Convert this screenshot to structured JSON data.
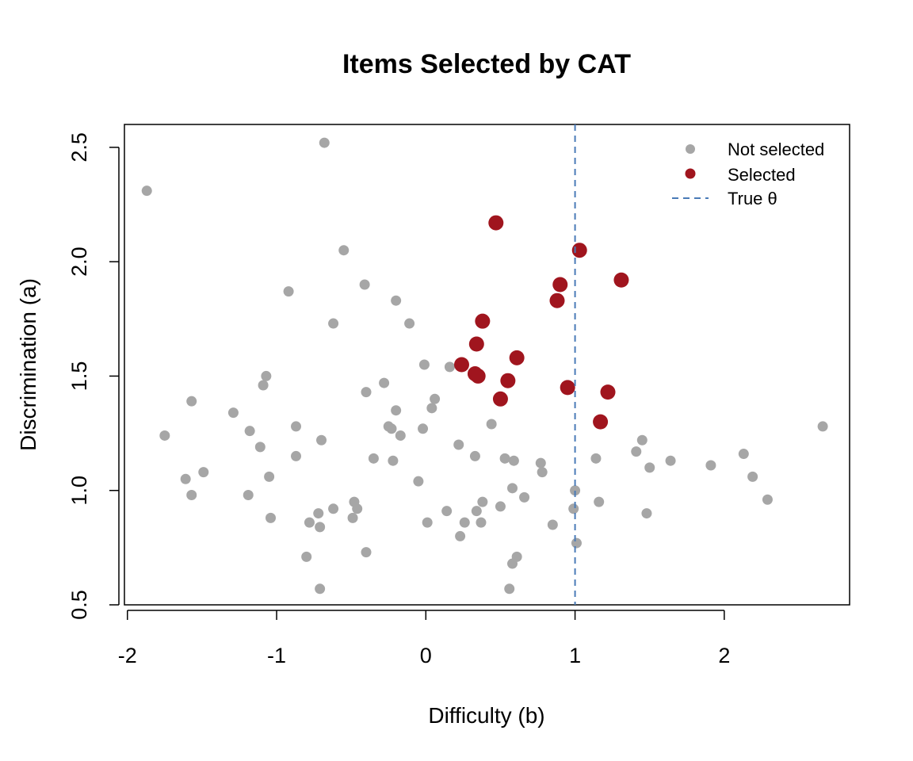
{
  "chart_data": {
    "type": "scatter",
    "title": "Items Selected by CAT",
    "xlabel": "Difficulty (b)",
    "ylabel": "Discrimination (a)",
    "xlim": [
      -2.02,
      2.84
    ],
    "ylim": [
      0.5,
      2.6
    ],
    "xticks": [
      -2,
      -1,
      0,
      1,
      2
    ],
    "yticks": [
      0.5,
      1.0,
      1.5,
      2.0,
      2.5
    ],
    "xtick_labels": [
      "-2",
      "-1",
      "0",
      "1",
      "2"
    ],
    "ytick_labels": [
      "0.5",
      "1.0",
      "1.5",
      "2.0",
      "2.5"
    ],
    "grid": false,
    "legend_position": "top-right",
    "legend": {
      "not_selected": "Not selected",
      "selected": "Selected",
      "true_theta": "True θ"
    },
    "colors": {
      "not_selected": "#a6a6a6",
      "selected": "#a0151e",
      "true_theta": "#4a7bb7"
    },
    "true_theta": 1.0,
    "series": [
      {
        "name": "Not selected",
        "points": [
          [
            -1.87,
            2.31
          ],
          [
            -0.68,
            2.52
          ],
          [
            -0.55,
            2.05
          ],
          [
            -0.92,
            1.87
          ],
          [
            -0.41,
            1.9
          ],
          [
            -0.2,
            1.83
          ],
          [
            -0.62,
            1.73
          ],
          [
            -0.11,
            1.73
          ],
          [
            -0.01,
            1.55
          ],
          [
            0.16,
            1.54
          ],
          [
            -1.07,
            1.5
          ],
          [
            -1.09,
            1.46
          ],
          [
            -0.28,
            1.47
          ],
          [
            -0.4,
            1.43
          ],
          [
            0.06,
            1.4
          ],
          [
            0.04,
            1.36
          ],
          [
            -1.57,
            1.39
          ],
          [
            -1.29,
            1.34
          ],
          [
            -0.2,
            1.35
          ],
          [
            0.44,
            1.29
          ],
          [
            -0.25,
            1.28
          ],
          [
            -0.23,
            1.27
          ],
          [
            -0.02,
            1.27
          ],
          [
            -0.87,
            1.28
          ],
          [
            -1.18,
            1.26
          ],
          [
            -0.17,
            1.24
          ],
          [
            -1.75,
            1.24
          ],
          [
            -0.7,
            1.22
          ],
          [
            0.22,
            1.2
          ],
          [
            -1.11,
            1.19
          ],
          [
            1.45,
            1.22
          ],
          [
            1.41,
            1.17
          ],
          [
            2.66,
            1.28
          ],
          [
            -0.87,
            1.15
          ],
          [
            -0.35,
            1.14
          ],
          [
            -0.22,
            1.13
          ],
          [
            0.33,
            1.15
          ],
          [
            0.53,
            1.14
          ],
          [
            0.59,
            1.13
          ],
          [
            0.77,
            1.12
          ],
          [
            0.78,
            1.08
          ],
          [
            1.14,
            1.14
          ],
          [
            1.5,
            1.1
          ],
          [
            1.64,
            1.13
          ],
          [
            1.91,
            1.11
          ],
          [
            2.13,
            1.16
          ],
          [
            2.19,
            1.06
          ],
          [
            -1.61,
            1.05
          ],
          [
            -1.49,
            1.08
          ],
          [
            -1.05,
            1.06
          ],
          [
            -0.05,
            1.04
          ],
          [
            -1.57,
            0.98
          ],
          [
            -1.19,
            0.98
          ],
          [
            0.58,
            1.01
          ],
          [
            1.0,
            1.0
          ],
          [
            0.66,
            0.97
          ],
          [
            0.99,
            0.92
          ],
          [
            1.16,
            0.95
          ],
          [
            1.48,
            0.9
          ],
          [
            2.29,
            0.96
          ],
          [
            -0.48,
            0.95
          ],
          [
            -0.46,
            0.92
          ],
          [
            -0.62,
            0.92
          ],
          [
            -0.72,
            0.9
          ],
          [
            -0.49,
            0.88
          ],
          [
            -1.04,
            0.88
          ],
          [
            0.14,
            0.91
          ],
          [
            0.34,
            0.91
          ],
          [
            0.38,
            0.95
          ],
          [
            0.5,
            0.93
          ],
          [
            -0.78,
            0.86
          ],
          [
            -0.71,
            0.84
          ],
          [
            0.01,
            0.86
          ],
          [
            0.26,
            0.86
          ],
          [
            0.37,
            0.86
          ],
          [
            0.85,
            0.85
          ],
          [
            0.23,
            0.8
          ],
          [
            1.01,
            0.77
          ],
          [
            -0.8,
            0.71
          ],
          [
            -0.4,
            0.73
          ],
          [
            0.61,
            0.71
          ],
          [
            0.58,
            0.68
          ],
          [
            -0.71,
            0.57
          ],
          [
            0.56,
            0.57
          ]
        ]
      },
      {
        "name": "Selected",
        "points": [
          [
            0.47,
            2.17
          ],
          [
            1.03,
            2.05
          ],
          [
            0.9,
            1.9
          ],
          [
            1.31,
            1.92
          ],
          [
            0.88,
            1.83
          ],
          [
            0.38,
            1.74
          ],
          [
            0.34,
            1.64
          ],
          [
            0.61,
            1.58
          ],
          [
            0.24,
            1.55
          ],
          [
            0.33,
            1.51
          ],
          [
            0.35,
            1.5
          ],
          [
            0.55,
            1.48
          ],
          [
            0.95,
            1.45
          ],
          [
            1.22,
            1.43
          ],
          [
            0.5,
            1.4
          ],
          [
            1.17,
            1.3
          ]
        ]
      }
    ]
  }
}
